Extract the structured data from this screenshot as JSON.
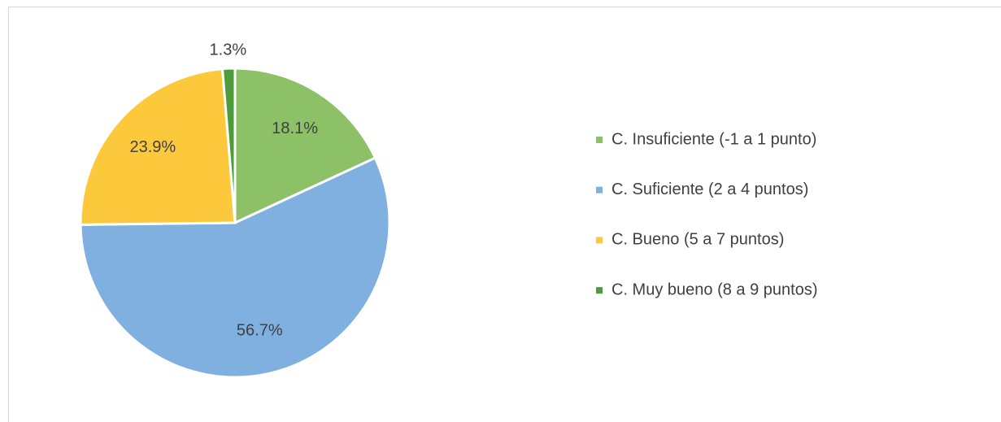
{
  "chart_data": {
    "type": "pie",
    "categories": [
      "C. Insuficiente (-1 a 1 punto)",
      "C. Suficiente (2 a 4 puntos)",
      "C. Bueno (5 a 7 puntos)",
      "C. Muy bueno (8 a 9 puntos)"
    ],
    "values": [
      18.1,
      56.7,
      23.9,
      1.3
    ],
    "value_labels": [
      "18.1%",
      "56.7%",
      "23.9%",
      "1.3%"
    ],
    "colors": [
      "#8cc168",
      "#7fb0e0",
      "#fcc93c",
      "#4f9a3a"
    ],
    "legend": "right"
  }
}
